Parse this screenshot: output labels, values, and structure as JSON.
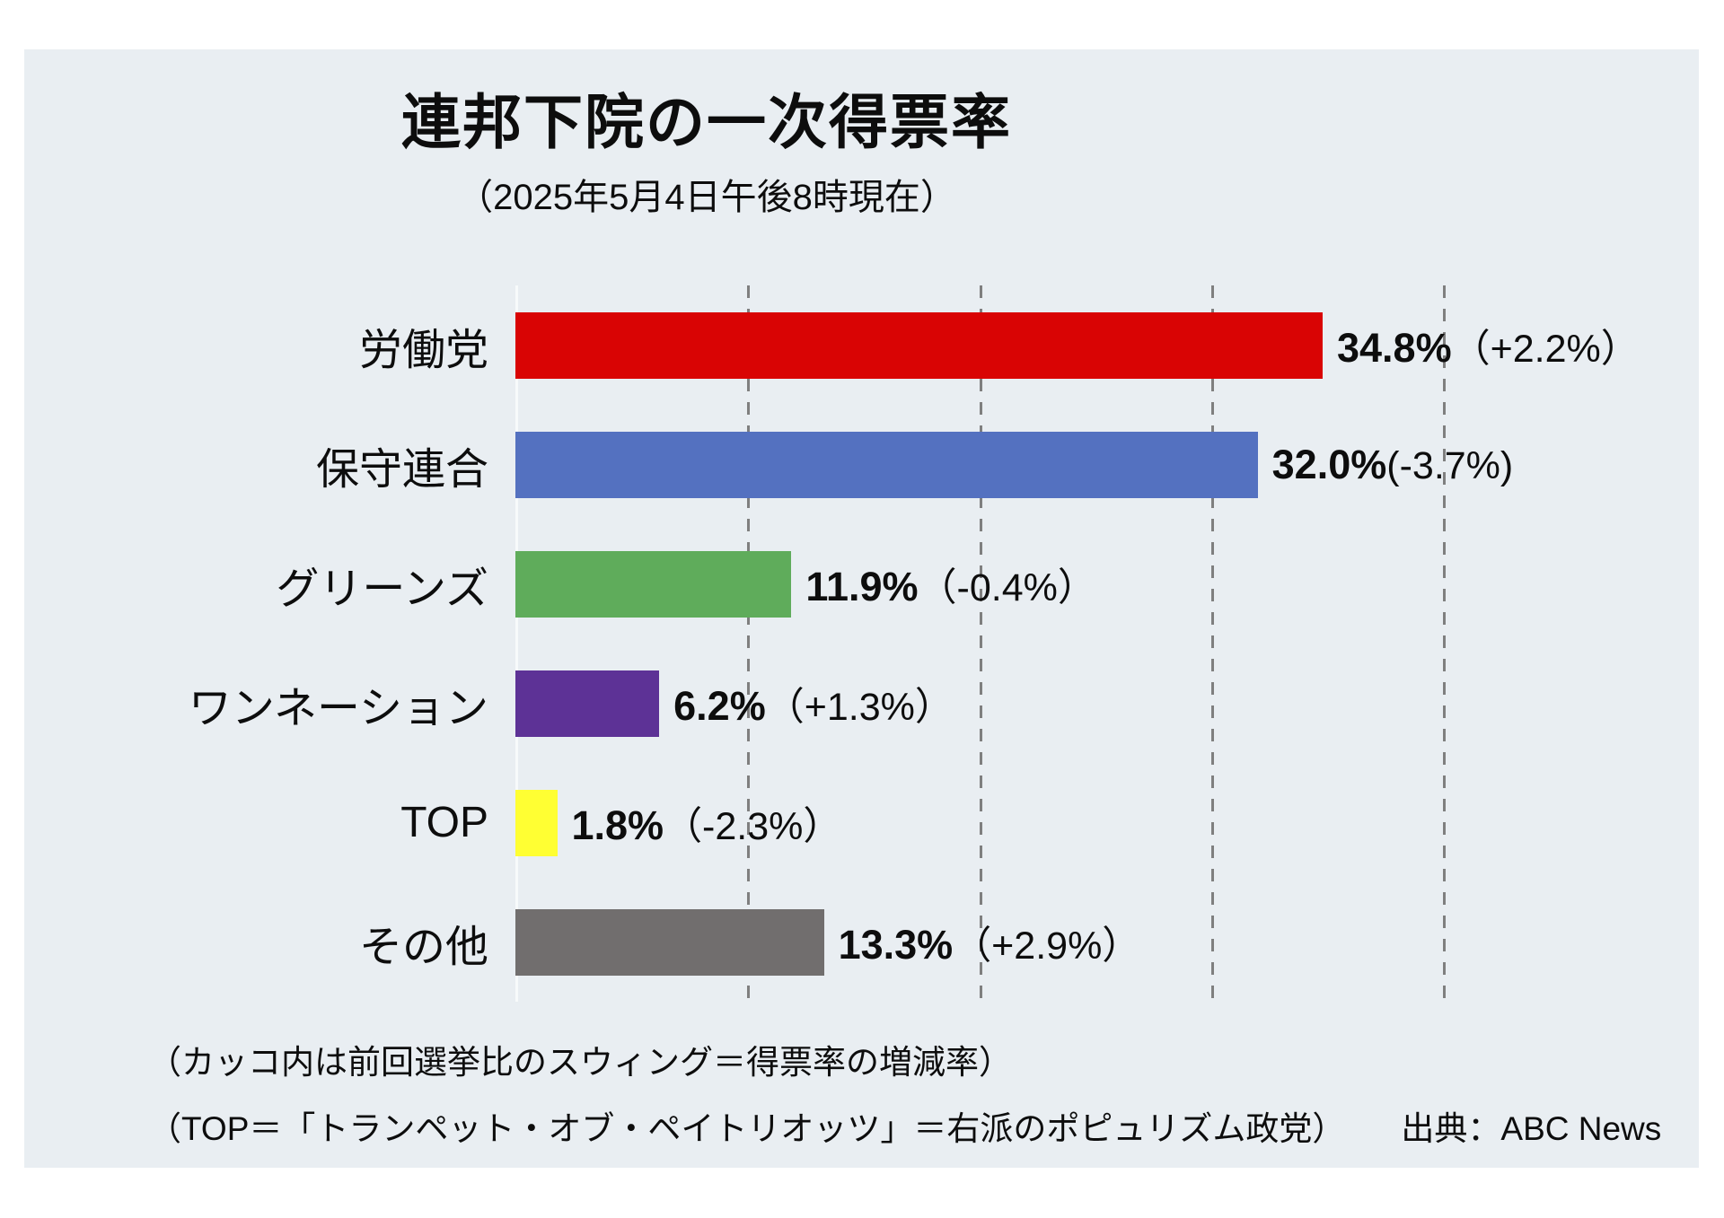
{
  "header": {
    "title": "連邦下院の一次得票率",
    "subtitle": "（2025年5月4日午後8時現在）"
  },
  "chart_data": {
    "type": "bar",
    "orientation": "horizontal",
    "title": "連邦下院の一次得票率",
    "subtitle": "（2025年5月4日午後8時現在）",
    "categories": [
      "労働党",
      "保守連合",
      "グリーンズ",
      "ワンネーション",
      "TOP",
      "その他"
    ],
    "values": [
      34.8,
      32.0,
      11.9,
      6.2,
      1.8,
      13.3
    ],
    "value_labels": [
      "34.8%",
      "32.0%",
      "11.9%",
      "6.2%",
      "1.8%",
      "13.3%"
    ],
    "swings": [
      2.2,
      -3.7,
      -0.4,
      1.3,
      -2.3,
      2.9
    ],
    "swing_labels": [
      "（+2.2%）",
      "(-3.7%)",
      "（-0.4%）",
      "（+1.3%）",
      "（-2.3%）",
      "（+2.9%）"
    ],
    "bar_colors": [
      "#D90404",
      "#5471C0",
      "#5FAC5B",
      "#5D3296",
      "#FFFF33",
      "#716E6E"
    ],
    "xlim": [
      0,
      42
    ],
    "gridlines_percent": [
      10,
      20,
      30,
      40
    ],
    "grid": "dashed-vertical-gray",
    "legend": "none"
  },
  "footer": {
    "note1": "（カッコ内は前回選挙比のスウィング＝得票率の増減率）",
    "note2": "（TOP＝「トランペット・オブ・ペイトリオッツ」＝右派のポピュリズム政党）",
    "source": "出典：ABC News"
  },
  "colors": {
    "page_bg": "#FFFFFF",
    "panel_bg": "#E9EEF2",
    "gridline": "#7F7F7F",
    "axis_line": "#F7FAFB",
    "text": "#0D0D0D"
  }
}
